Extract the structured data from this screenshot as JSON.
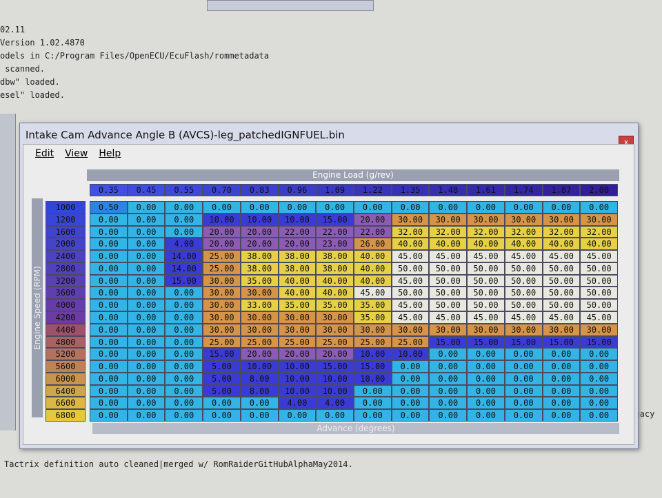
{
  "log": {
    "lines": [
      "02.11",
      "Version 1.02.4870",
      "odels in C:/Program Files/OpenECU/EcuFlash/rommetadata",
      " scanned.",
      "dbw\" loaded.",
      "esel\" loaded."
    ],
    "side": "Legacy",
    "footer": "Tactrix definition auto cleaned|merged w/ RomRaiderGitHubAlphaMay2014."
  },
  "window": {
    "title": "Intake Cam Advance Angle B (AVCS)-leg_patchedIGNFUEL.bin",
    "menu": [
      "Edit",
      "View",
      "Help"
    ]
  },
  "table": {
    "x_axis_title": "Engine Load (g/rev)",
    "y_axis_title": "Engine Speed (RPM)",
    "value_title": "Advance (degrees)",
    "columns": [
      "0.35",
      "0.45",
      "0.55",
      "0.70",
      "0.83",
      "0.96",
      "1.09",
      "1.22",
      "1.35",
      "1.48",
      "1.61",
      "1.74",
      "1.87",
      "2.00"
    ],
    "rows": [
      "1000",
      "1200",
      "1600",
      "2000",
      "2400",
      "2800",
      "3200",
      "3600",
      "4000",
      "4200",
      "4400",
      "4800",
      "5200",
      "5600",
      "6000",
      "6400",
      "6600",
      "6800"
    ],
    "cells": [
      [
        "0.50",
        "0.00",
        "0.00",
        "0.00",
        "0.00",
        "0.00",
        "0.00",
        "0.00",
        "0.00",
        "0.00",
        "0.00",
        "0.00",
        "0.00",
        "0.00"
      ],
      [
        "0.00",
        "0.00",
        "0.00",
        "10.00",
        "10.00",
        "10.00",
        "15.00",
        "20.00",
        "30.00",
        "30.00",
        "30.00",
        "30.00",
        "30.00",
        "30.00"
      ],
      [
        "0.00",
        "0.00",
        "0.00",
        "20.00",
        "20.00",
        "22.00",
        "22.00",
        "22.00",
        "32.00",
        "32.00",
        "32.00",
        "32.00",
        "32.00",
        "32.00"
      ],
      [
        "0.00",
        "0.00",
        "4.00",
        "20.00",
        "20.00",
        "20.00",
        "23.00",
        "26.00",
        "40.00",
        "40.00",
        "40.00",
        "40.00",
        "40.00",
        "40.00"
      ],
      [
        "0.00",
        "0.00",
        "14.00",
        "25.00",
        "38.00",
        "38.00",
        "38.00",
        "40.00",
        "45.00",
        "45.00",
        "45.00",
        "45.00",
        "45.00",
        "45.00"
      ],
      [
        "0.00",
        "0.00",
        "14.00",
        "25.00",
        "38.00",
        "38.00",
        "38.00",
        "40.00",
        "50.00",
        "50.00",
        "50.00",
        "50.00",
        "50.00",
        "50.00"
      ],
      [
        "0.00",
        "0.00",
        "15.00",
        "30.00",
        "35.00",
        "40.00",
        "40.00",
        "40.00",
        "45.00",
        "50.00",
        "50.00",
        "50.00",
        "50.00",
        "50.00"
      ],
      [
        "0.00",
        "0.00",
        "0.00",
        "30.00",
        "30.00",
        "40.00",
        "40.00",
        "45.00",
        "50.00",
        "50.00",
        "50.00",
        "50.00",
        "50.00",
        "50.00"
      ],
      [
        "0.00",
        "0.00",
        "0.00",
        "30.00",
        "33.00",
        "35.00",
        "35.00",
        "35.00",
        "45.00",
        "50.00",
        "50.00",
        "50.00",
        "50.00",
        "50.00"
      ],
      [
        "0.00",
        "0.00",
        "0.00",
        "30.00",
        "30.00",
        "30.00",
        "30.00",
        "35.00",
        "45.00",
        "45.00",
        "45.00",
        "45.00",
        "45.00",
        "45.00"
      ],
      [
        "0.00",
        "0.00",
        "0.00",
        "30.00",
        "30.00",
        "30.00",
        "30.00",
        "30.00",
        "30.00",
        "30.00",
        "30.00",
        "30.00",
        "30.00",
        "30.00"
      ],
      [
        "0.00",
        "0.00",
        "0.00",
        "25.00",
        "25.00",
        "25.00",
        "25.00",
        "25.00",
        "25.00",
        "15.00",
        "15.00",
        "15.00",
        "15.00",
        "15.00"
      ],
      [
        "0.00",
        "0.00",
        "0.00",
        "15.00",
        "20.00",
        "20.00",
        "20.00",
        "10.00",
        "10.00",
        "0.00",
        "0.00",
        "0.00",
        "0.00",
        "0.00"
      ],
      [
        "0.00",
        "0.00",
        "0.00",
        "5.00",
        "10.00",
        "10.00",
        "15.00",
        "15.00",
        "0.00",
        "0.00",
        "0.00",
        "0.00",
        "0.00",
        "0.00"
      ],
      [
        "0.00",
        "0.00",
        "0.00",
        "5.00",
        "8.00",
        "10.00",
        "10.00",
        "10.00",
        "0.00",
        "0.00",
        "0.00",
        "0.00",
        "0.00",
        "0.00"
      ],
      [
        "0.00",
        "0.00",
        "0.00",
        "5.00",
        "8.00",
        "10.00",
        "10.00",
        "0.00",
        "0.00",
        "0.00",
        "0.00",
        "0.00",
        "0.00",
        "0.00"
      ],
      [
        "0.00",
        "0.00",
        "0.00",
        "0.00",
        "0.00",
        "4.00",
        "4.00",
        "0.00",
        "0.00",
        "0.00",
        "0.00",
        "0.00",
        "0.00",
        "0.00"
      ],
      [
        "0.00",
        "0.00",
        "0.00",
        "0.00",
        "0.00",
        "0.00",
        "0.00",
        "0.00",
        "0.00",
        "0.00",
        "0.00",
        "0.00",
        "0.00",
        "0.00"
      ]
    ]
  }
}
